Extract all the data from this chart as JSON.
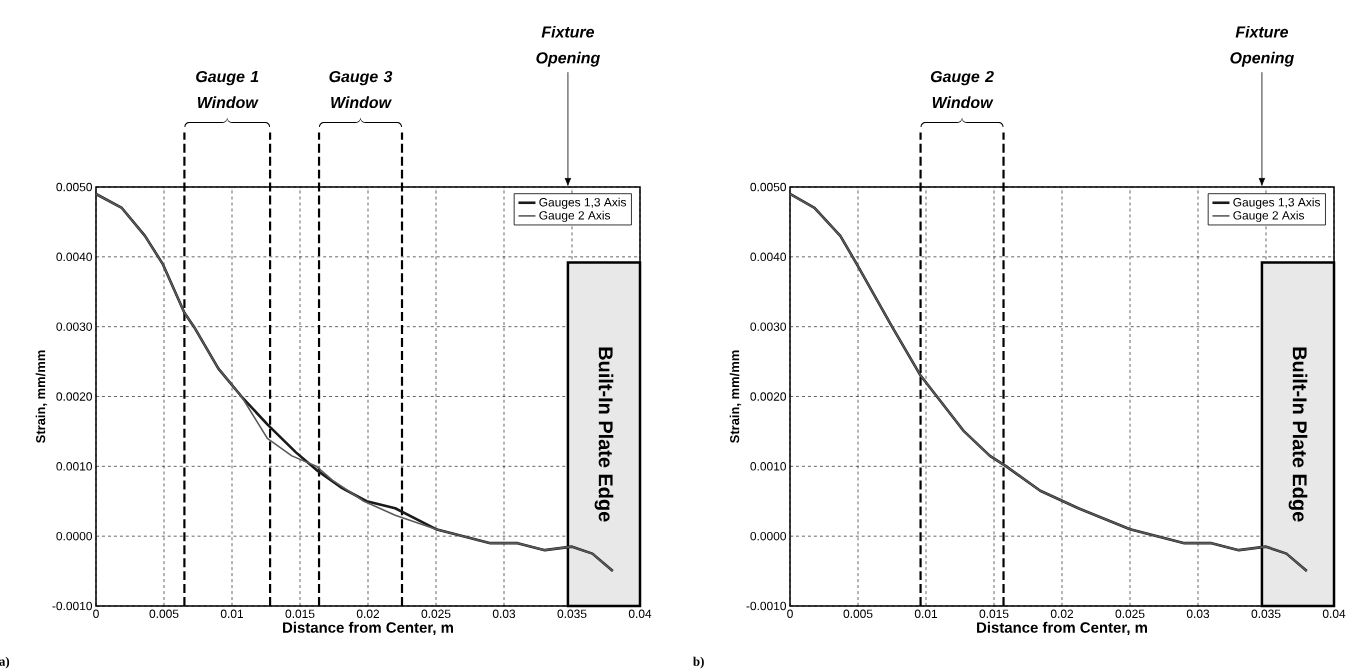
{
  "chart_data": [
    {
      "type": "line",
      "xlabel": "Distance from Center, m",
      "ylabel": "Strain, mm/mm",
      "xlim": [
        0,
        0.04
      ],
      "ylim": [
        -0.001,
        0.005
      ],
      "xticks": [
        0,
        0.005,
        0.01,
        0.015,
        0.02,
        0.025,
        0.03,
        0.035,
        0.04
      ],
      "yticks": [
        {
          "value": -0.001,
          "label": "-0.0010"
        },
        {
          "value": 0,
          "label": "0.0000"
        },
        {
          "value": 0.001,
          "label": "0.0010"
        },
        {
          "value": 0.002,
          "label": "0.0020"
        },
        {
          "value": 0.003,
          "label": "0.0030"
        },
        {
          "value": 0.004,
          "label": "0.0040"
        },
        {
          "value": 0.005,
          "label": "0.0050"
        }
      ],
      "grid": true,
      "legend": "top right",
      "series": [
        {
          "name": "Gauges 1,3 Axis",
          "color": "#1a1a1a",
          "x": [
            0,
            0.0019,
            0.0036,
            0.0049,
            0.0065,
            0.0072,
            0.009,
            0.0107,
            0.0126,
            0.0147,
            0.0162,
            0.018,
            0.0199,
            0.022,
            0.025,
            0.027,
            0.029,
            0.031,
            0.033,
            0.035,
            0.0365,
            0.038
          ],
          "values": [
            0.0049,
            0.0047,
            0.0043,
            0.0039,
            0.0032,
            0.003,
            0.0024,
            0.002,
            0.0016,
            0.0012,
            0.00095,
            0.0007,
            0.0005,
            0.0004,
            0.0001,
            0.0,
            -0.0001,
            -0.0001,
            -0.0002,
            -0.00015,
            -0.00025,
            -0.0005
          ]
        },
        {
          "name": "Gauge 2 Axis",
          "color": "#5a5a5a",
          "x": [
            0,
            0.0019,
            0.0036,
            0.0049,
            0.0065,
            0.0072,
            0.009,
            0.0107,
            0.0126,
            0.0144,
            0.0162,
            0.0174,
            0.0197,
            0.022,
            0.025,
            0.027,
            0.029,
            0.031,
            0.033,
            0.035,
            0.0365,
            0.038
          ],
          "values": [
            0.0049,
            0.0047,
            0.0043,
            0.0039,
            0.0032,
            0.003,
            0.0024,
            0.002,
            0.0014,
            0.00115,
            0.001,
            0.0008,
            0.0005,
            0.0003,
            0.0001,
            0.0,
            -0.0001,
            -0.0001,
            -0.0002,
            -0.00015,
            -0.00025,
            -0.0005
          ]
        }
      ],
      "ref_lines": [
        {
          "axis": "x",
          "value": 0.0065,
          "label": "Gauge 1 Window",
          "line_style": "dashed"
        },
        {
          "axis": "x",
          "value": 0.0128,
          "line_style": "dashed"
        },
        {
          "axis": "x",
          "value": 0.0164,
          "label": "Gauge 3 Window",
          "line_style": "dashed"
        },
        {
          "axis": "x",
          "value": 0.0225,
          "line_style": "dashed"
        }
      ],
      "bands": [
        {
          "axis": "x",
          "from": 0.0347,
          "to": 0.04,
          "label": "Built-In Plate Edge",
          "color": "#e8e8e8"
        }
      ],
      "annotations": [
        "a)",
        "Fixture Opening"
      ]
    },
    {
      "type": "line",
      "xlabel": "Distance from Center, m",
      "ylabel": "Strain, mm/mm",
      "xlim": [
        0,
        0.04
      ],
      "ylim": [
        -0.001,
        0.005
      ],
      "xticks": [
        0,
        0.005,
        0.01,
        0.015,
        0.02,
        0.025,
        0.03,
        0.035,
        0.04
      ],
      "yticks": [
        {
          "value": -0.001,
          "label": "-0.0010"
        },
        {
          "value": 0,
          "label": "0.0000"
        },
        {
          "value": 0.001,
          "label": "0.0010"
        },
        {
          "value": 0.002,
          "label": "0.0020"
        },
        {
          "value": 0.003,
          "label": "0.0030"
        },
        {
          "value": 0.004,
          "label": "0.0040"
        },
        {
          "value": 0.005,
          "label": "0.0050"
        }
      ],
      "grid": true,
      "legend": "top right",
      "series": [
        {
          "name": "Gauges 1,3 Axis",
          "color": "#1a1a1a",
          "x": [
            0,
            0.0018,
            0.0037,
            0.0049,
            0.0075,
            0.0096,
            0.0108,
            0.0128,
            0.0147,
            0.0159,
            0.0184,
            0.0212,
            0.025,
            0.027,
            0.029,
            0.031,
            0.033,
            0.035,
            0.0365,
            0.038
          ],
          "values": [
            0.0049,
            0.0047,
            0.0043,
            0.0039,
            0.003,
            0.0023,
            0.002,
            0.0015,
            0.00115,
            0.001,
            0.00065,
            0.0004,
            0.0001,
            0.0,
            -0.0001,
            -0.0001,
            -0.0002,
            -0.00015,
            -0.00025,
            -0.0005
          ]
        },
        {
          "name": "Gauge 2 Axis",
          "color": "#5a5a5a",
          "x": [
            0,
            0.0018,
            0.0037,
            0.0049,
            0.0075,
            0.0096,
            0.0108,
            0.0128,
            0.0147,
            0.0159,
            0.0184,
            0.0212,
            0.025,
            0.027,
            0.029,
            0.031,
            0.033,
            0.035,
            0.0365,
            0.038
          ],
          "values": [
            0.0049,
            0.0047,
            0.0043,
            0.0039,
            0.003,
            0.0023,
            0.002,
            0.0015,
            0.00115,
            0.001,
            0.00065,
            0.0004,
            0.0001,
            0.0,
            -0.0001,
            -0.0001,
            -0.0002,
            -0.00015,
            -0.00025,
            -0.0005
          ]
        }
      ],
      "ref_lines": [
        {
          "axis": "x",
          "value": 0.0096,
          "label": "Gauge 2 Window",
          "line_style": "dashed"
        },
        {
          "axis": "x",
          "value": 0.0157,
          "line_style": "dashed"
        }
      ],
      "bands": [
        {
          "axis": "x",
          "from": 0.0347,
          "to": 0.04,
          "label": "Built-In Plate Edge",
          "color": "#e8e8e8"
        }
      ],
      "annotations": [
        "b)",
        "Fixture Opening"
      ]
    }
  ]
}
